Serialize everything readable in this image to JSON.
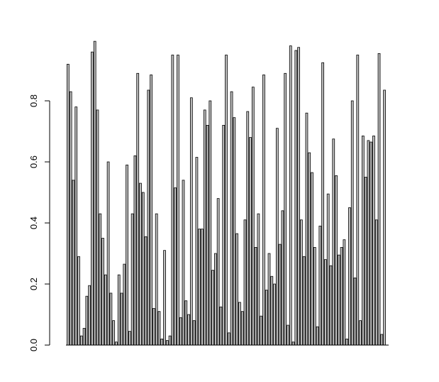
{
  "colors": {
    "bar_fill": "#bebebe",
    "bar_stroke": "#000000",
    "axis": "#000000",
    "background": "#ffffff"
  },
  "chart_data": {
    "type": "bar",
    "title": "",
    "xlabel": "",
    "ylabel": "",
    "ylim": [
      0,
      1
    ],
    "yticks": [
      "0.0",
      "0.2",
      "0.4",
      "0.6",
      "0.8"
    ],
    "ytick_values": [
      0.0,
      0.2,
      0.4,
      0.6,
      0.8
    ],
    "grid": false,
    "legend": "none",
    "values": [
      0.92,
      0.83,
      0.54,
      0.78,
      0.29,
      0.03,
      0.055,
      0.16,
      0.195,
      0.96,
      0.995,
      0.77,
      0.43,
      0.35,
      0.23,
      0.6,
      0.17,
      0.08,
      0.01,
      0.23,
      0.17,
      0.265,
      0.59,
      0.045,
      0.43,
      0.62,
      0.89,
      0.53,
      0.5,
      0.355,
      0.835,
      0.885,
      0.12,
      0.43,
      0.11,
      0.02,
      0.31,
      0.015,
      0.03,
      0.95,
      0.515,
      0.95,
      0.09,
      0.54,
      0.145,
      0.1,
      0.81,
      0.08,
      0.615,
      0.38,
      0.38,
      0.77,
      0.72,
      0.8,
      0.245,
      0.3,
      0.48,
      0.125,
      0.72,
      0.95,
      0.04,
      0.83,
      0.745,
      0.365,
      0.14,
      0.11,
      0.41,
      0.765,
      0.68,
      0.845,
      0.32,
      0.43,
      0.095,
      0.885,
      0.18,
      0.3,
      0.225,
      0.2,
      0.71,
      0.33,
      0.44,
      0.89,
      0.065,
      0.98,
      0.01,
      0.965,
      0.975,
      0.41,
      0.29,
      0.76,
      0.63,
      0.565,
      0.32,
      0.06,
      0.39,
      0.925,
      0.28,
      0.495,
      0.26,
      0.675,
      0.555,
      0.295,
      0.32,
      0.345,
      0.02,
      0.45,
      0.8,
      0.22,
      0.95,
      0.08,
      0.685,
      0.55,
      0.67,
      0.665,
      0.685,
      0.41,
      0.955,
      0.035,
      0.835
    ]
  }
}
